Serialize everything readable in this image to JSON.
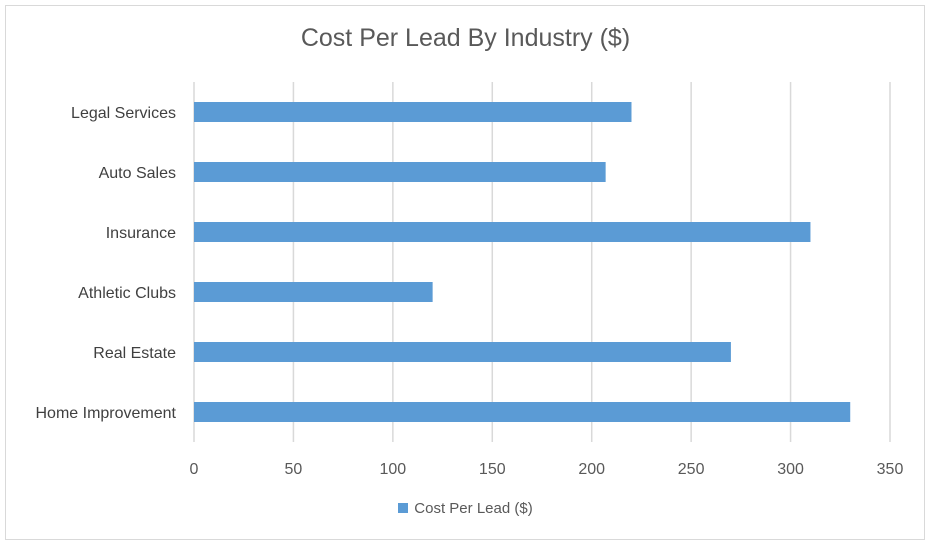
{
  "chart_data": {
    "type": "bar",
    "orientation": "horizontal",
    "title": "Cost Per Lead By Industry ($)",
    "categories": [
      "Legal Services",
      "Auto Sales",
      "Insurance",
      "Athletic Clubs",
      "Real Estate",
      "Home Improvement"
    ],
    "series": [
      {
        "name": "Cost Per Lead ($)",
        "values": [
          220,
          207,
          310,
          120,
          270,
          330
        ],
        "color": "#5b9bd5"
      }
    ],
    "xlim": [
      0,
      350
    ],
    "xticks": [
      0,
      50,
      100,
      150,
      200,
      250,
      300,
      350
    ],
    "grid": "vertical",
    "legend": "bottom"
  }
}
